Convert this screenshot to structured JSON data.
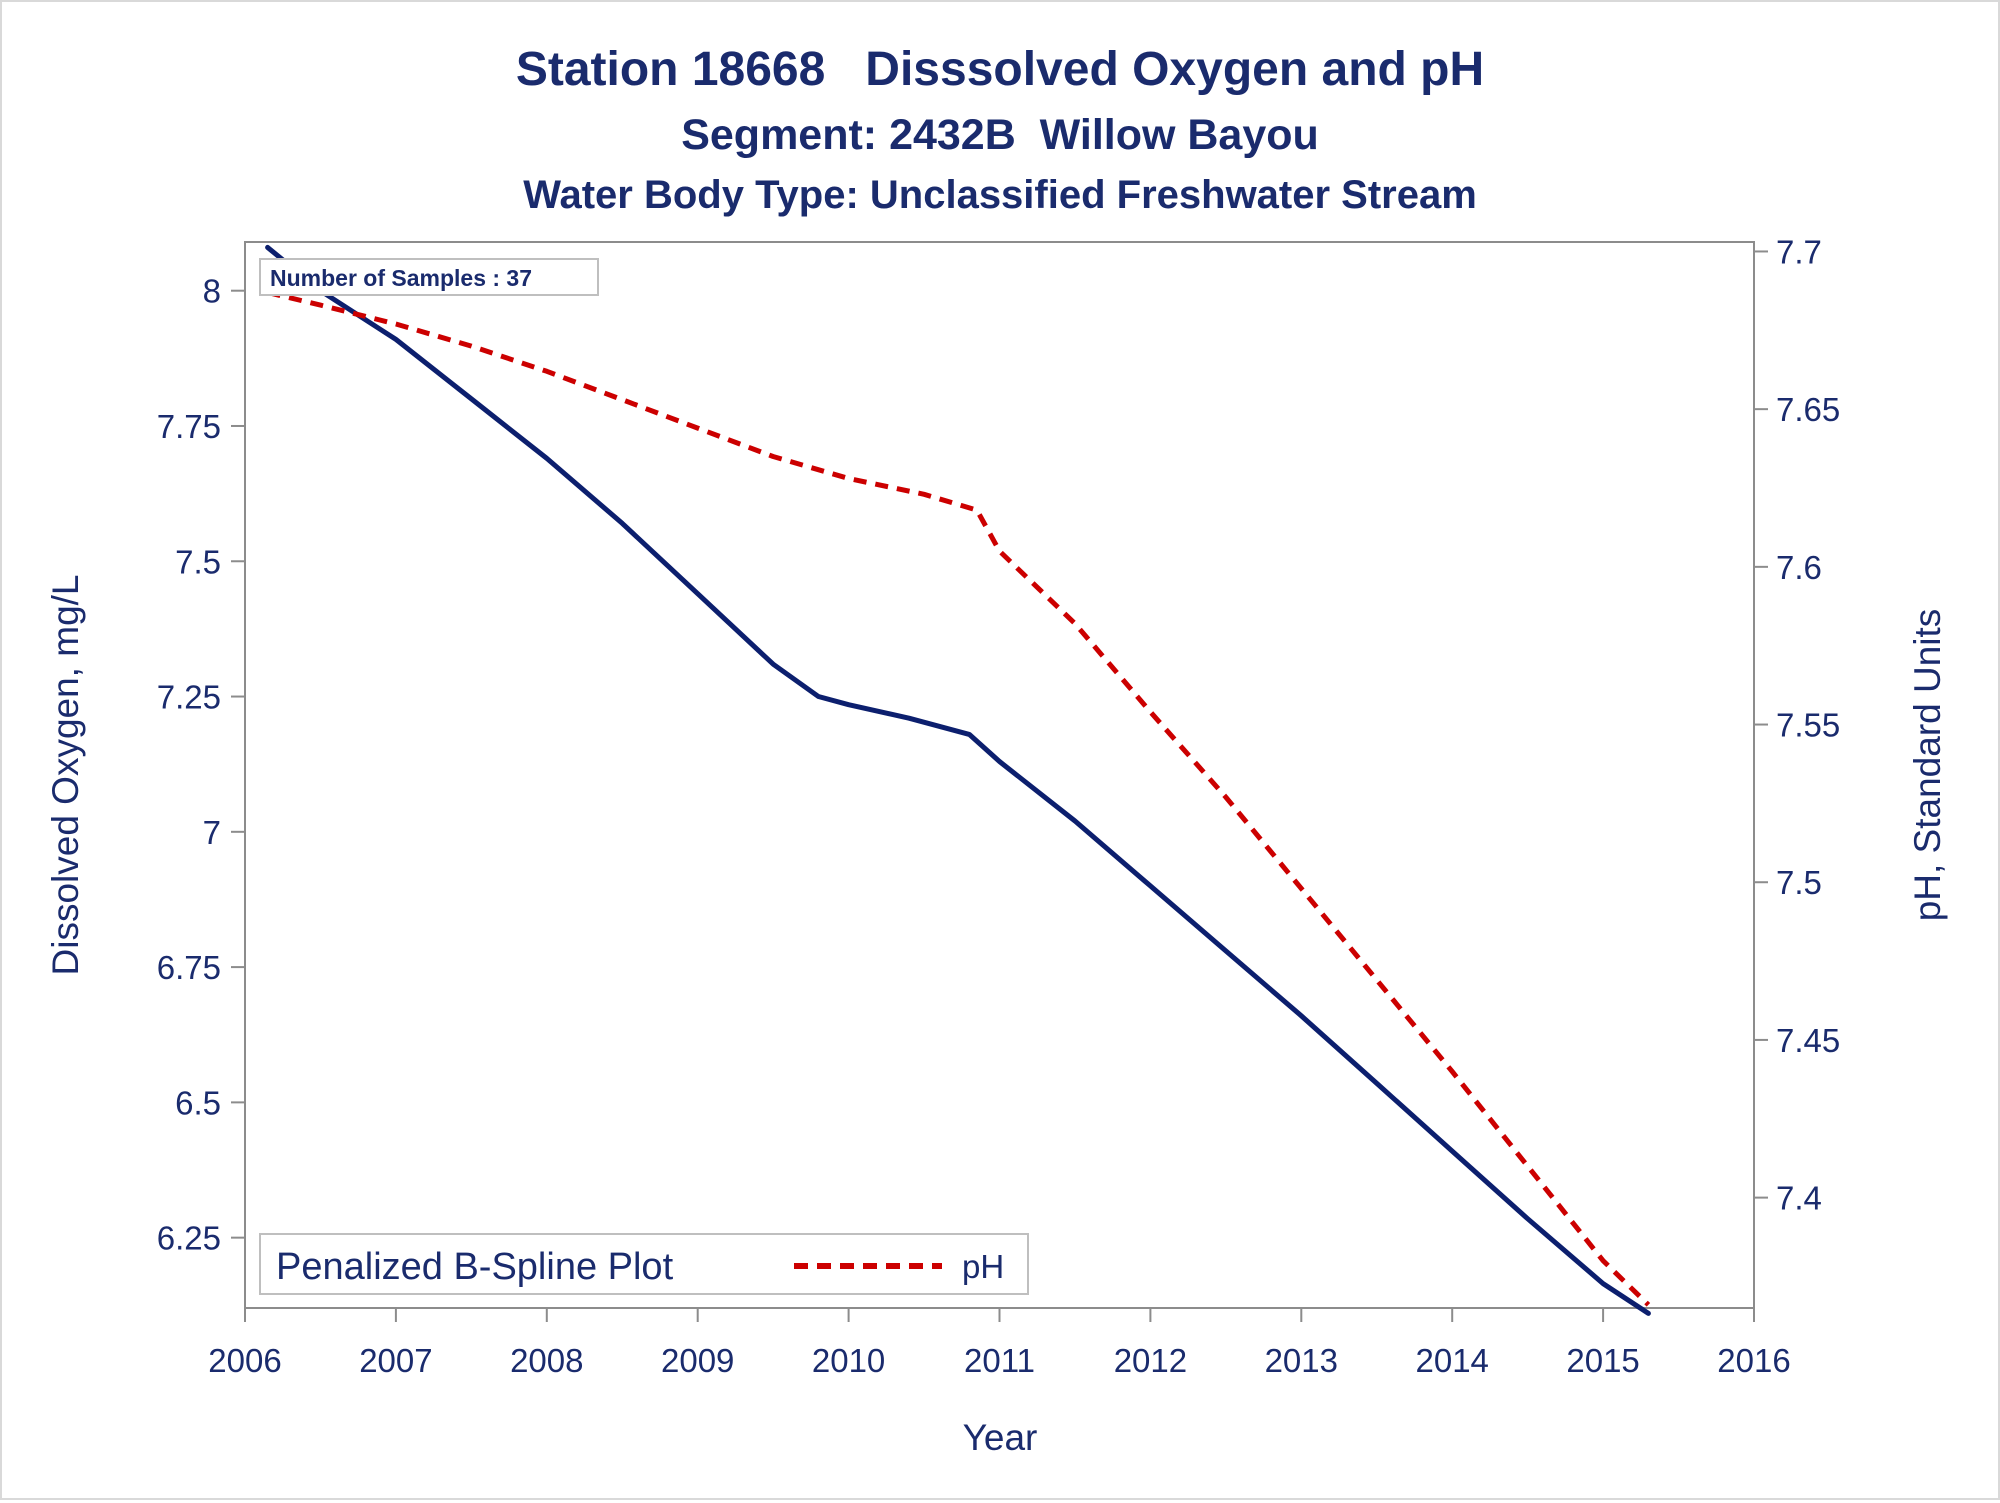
{
  "colors": {
    "text": "#1a2b6d",
    "do_line": "#0c1f6e",
    "ph_line": "#cc0000",
    "axis": "#8c8c8c",
    "inset_border": "#bfbfbf"
  },
  "chart_data": {
    "type": "line",
    "title": "Station 18668   Disssolved Oxygen and pH",
    "subtitle": "Segment: 2432B  Willow Bayou",
    "subtitle2": "Water Body Type: Unclassified Freshwater Stream",
    "xlabel": "Year",
    "ylabel": "Dissolved Oxygen, mg/L",
    "y2label": "pH, Standard Units",
    "xlim": [
      2006,
      2016
    ],
    "ylim": [
      6.12,
      8.09
    ],
    "y2lim": [
      7.365,
      7.703
    ],
    "x_ticks": [
      "2006",
      "2007",
      "2008",
      "2009",
      "2010",
      "2011",
      "2012",
      "2013",
      "2014",
      "2015",
      "2016"
    ],
    "y_ticks": [
      "6.25",
      "6.5",
      "6.75",
      "7",
      "7.25",
      "7.5",
      "7.75",
      "8"
    ],
    "y2_ticks": [
      "7.4",
      "7.45",
      "7.5",
      "7.55",
      "7.6",
      "7.65",
      "7.7"
    ],
    "inset_label": "Number of Samples : 37",
    "legend": {
      "position": "bottom-left",
      "title": "Penalized B-Spline Plot",
      "entries": [
        "pH"
      ]
    },
    "series": [
      {
        "axis": "left",
        "style": "solid",
        "x": [
          2006.15,
          2006.5,
          2007.0,
          2007.5,
          2008.0,
          2008.5,
          2009.0,
          2009.5,
          2009.8,
          2010.0,
          2010.4,
          2010.8,
          2011.0,
          2011.5,
          2012.0,
          2012.5,
          2013.0,
          2013.5,
          2014.0,
          2014.5,
          2015.0,
          2015.3
        ],
        "values": [
          8.08,
          8.0,
          7.91,
          7.8,
          7.69,
          7.57,
          7.44,
          7.31,
          7.25,
          7.235,
          7.21,
          7.18,
          7.13,
          7.02,
          6.9,
          6.78,
          6.66,
          6.535,
          6.41,
          6.285,
          6.165,
          6.11
        ]
      },
      {
        "name": "pH",
        "axis": "right",
        "style": "dashed",
        "x": [
          2006.15,
          2006.5,
          2007.0,
          2007.5,
          2008.0,
          2008.5,
          2009.0,
          2009.5,
          2010.0,
          2010.5,
          2010.85,
          2011.0,
          2011.5,
          2012.0,
          2012.5,
          2013.0,
          2013.5,
          2014.0,
          2014.5,
          2015.0,
          2015.3
        ],
        "values": [
          7.687,
          7.683,
          7.677,
          7.67,
          7.662,
          7.653,
          7.644,
          7.635,
          7.628,
          7.623,
          7.618,
          7.605,
          7.582,
          7.554,
          7.527,
          7.498,
          7.469,
          7.44,
          7.41,
          7.38,
          7.366
        ]
      }
    ]
  }
}
